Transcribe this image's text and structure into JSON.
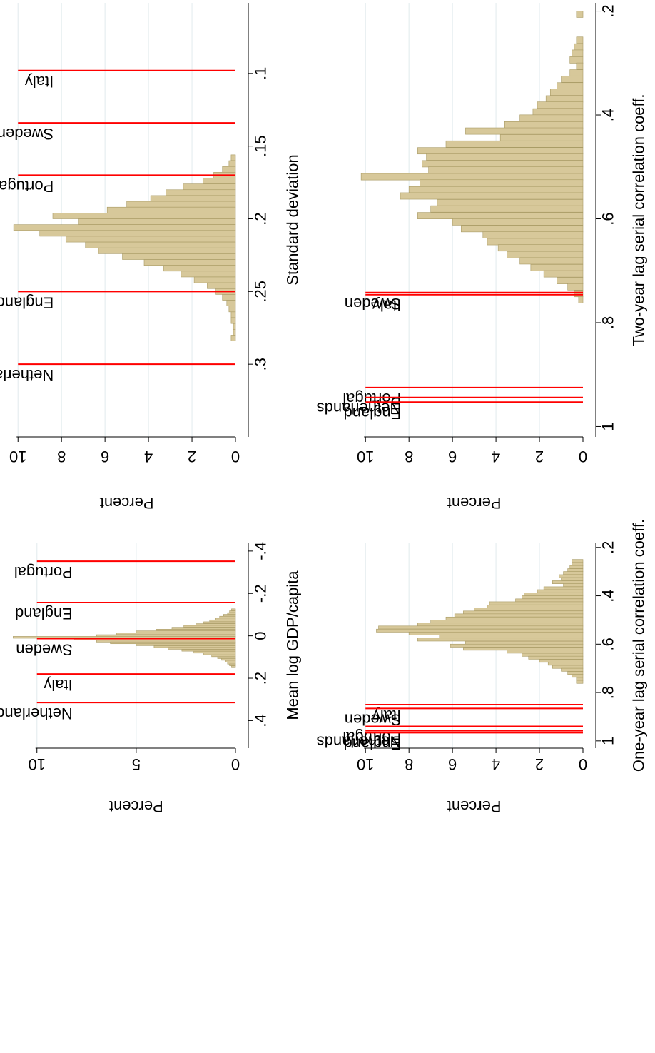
{
  "colors": {
    "bar_fill": "#d7c89a",
    "bar_stroke": "#a89a64",
    "marker": "#ff0000",
    "grid": "#e6eef0",
    "axis": "#000000"
  },
  "chart_data": [
    {
      "type": "histogram",
      "panel": "top-left",
      "xlabel": "Standard deviation",
      "ylabel": "Percent",
      "xlim": [
        0.05,
        0.35
      ],
      "ylim": [
        0,
        10.5
      ],
      "xticks": [
        0.1,
        0.15,
        0.2,
        0.25,
        0.3
      ],
      "xtick_labels": [
        ".1",
        ".15",
        ".2",
        ".25",
        ".3"
      ],
      "yticks": [
        0,
        2,
        4,
        6,
        8,
        10
      ],
      "ytick_labels": [
        "0",
        "2",
        "4",
        "6",
        "8",
        "10"
      ],
      "grid": true,
      "bin_width": 0.004,
      "bins": [
        {
          "x": 0.158,
          "y": 0.2
        },
        {
          "x": 0.162,
          "y": 0.3
        },
        {
          "x": 0.166,
          "y": 0.6
        },
        {
          "x": 0.17,
          "y": 1.0
        },
        {
          "x": 0.174,
          "y": 1.5
        },
        {
          "x": 0.178,
          "y": 2.4
        },
        {
          "x": 0.182,
          "y": 3.2
        },
        {
          "x": 0.186,
          "y": 3.9
        },
        {
          "x": 0.19,
          "y": 5.0
        },
        {
          "x": 0.194,
          "y": 5.9
        },
        {
          "x": 0.198,
          "y": 8.4
        },
        {
          "x": 0.202,
          "y": 7.2
        },
        {
          "x": 0.206,
          "y": 10.2
        },
        {
          "x": 0.21,
          "y": 9.0
        },
        {
          "x": 0.214,
          "y": 7.8
        },
        {
          "x": 0.218,
          "y": 6.9
        },
        {
          "x": 0.222,
          "y": 6.3
        },
        {
          "x": 0.226,
          "y": 5.2
        },
        {
          "x": 0.23,
          "y": 4.2
        },
        {
          "x": 0.234,
          "y": 3.3
        },
        {
          "x": 0.238,
          "y": 2.5
        },
        {
          "x": 0.242,
          "y": 1.9
        },
        {
          "x": 0.246,
          "y": 1.3
        },
        {
          "x": 0.25,
          "y": 0.9
        },
        {
          "x": 0.254,
          "y": 0.6
        },
        {
          "x": 0.258,
          "y": 0.4
        },
        {
          "x": 0.262,
          "y": 0.3
        },
        {
          "x": 0.266,
          "y": 0.2
        },
        {
          "x": 0.27,
          "y": 0.2
        },
        {
          "x": 0.274,
          "y": 0.1
        },
        {
          "x": 0.278,
          "y": 0.1
        },
        {
          "x": 0.282,
          "y": 0.2
        }
      ],
      "markers": [
        {
          "label": "Italy",
          "x": 0.098
        },
        {
          "label": "Sweden",
          "x": 0.134
        },
        {
          "label": "Portugal",
          "x": 0.17
        },
        {
          "label": "England",
          "x": 0.25
        },
        {
          "label": "Netherlands",
          "x": 0.3
        }
      ]
    },
    {
      "type": "histogram",
      "panel": "top-right",
      "xlabel": "Two-year lag serial correlation coeff.",
      "ylabel": "Percent",
      "xlim": [
        0.18,
        1.02
      ],
      "ylim": [
        0,
        10.5
      ],
      "xticks": [
        0.2,
        0.4,
        0.6,
        0.8,
        1.0
      ],
      "xtick_labels": [
        ".2",
        ".4",
        ".6",
        ".8",
        "1"
      ],
      "yticks": [
        0,
        2,
        4,
        6,
        8,
        10
      ],
      "ytick_labels": [
        "0",
        "2",
        "4",
        "6",
        "8",
        "10"
      ],
      "grid": true,
      "bin_width": 0.0125,
      "bins": [
        {
          "x": 0.206,
          "y": 0.3
        },
        {
          "x": 0.219,
          "y": 0.0
        },
        {
          "x": 0.231,
          "y": 0.0
        },
        {
          "x": 0.244,
          "y": 0.0
        },
        {
          "x": 0.256,
          "y": 0.3
        },
        {
          "x": 0.269,
          "y": 0.4
        },
        {
          "x": 0.281,
          "y": 0.5
        },
        {
          "x": 0.294,
          "y": 0.6
        },
        {
          "x": 0.306,
          "y": 0.3
        },
        {
          "x": 0.319,
          "y": 0.6
        },
        {
          "x": 0.331,
          "y": 1.0
        },
        {
          "x": 0.344,
          "y": 1.2
        },
        {
          "x": 0.356,
          "y": 1.5
        },
        {
          "x": 0.369,
          "y": 1.7
        },
        {
          "x": 0.381,
          "y": 2.1
        },
        {
          "x": 0.394,
          "y": 2.3
        },
        {
          "x": 0.406,
          "y": 2.9
        },
        {
          "x": 0.419,
          "y": 3.6
        },
        {
          "x": 0.431,
          "y": 5.4
        },
        {
          "x": 0.444,
          "y": 3.8
        },
        {
          "x": 0.456,
          "y": 6.3
        },
        {
          "x": 0.469,
          "y": 7.6
        },
        {
          "x": 0.481,
          "y": 7.2
        },
        {
          "x": 0.494,
          "y": 7.4
        },
        {
          "x": 0.506,
          "y": 7.1
        },
        {
          "x": 0.519,
          "y": 10.2
        },
        {
          "x": 0.531,
          "y": 7.5
        },
        {
          "x": 0.544,
          "y": 8.0
        },
        {
          "x": 0.556,
          "y": 8.4
        },
        {
          "x": 0.569,
          "y": 6.7
        },
        {
          "x": 0.581,
          "y": 7.0
        },
        {
          "x": 0.594,
          "y": 7.6
        },
        {
          "x": 0.606,
          "y": 6.0
        },
        {
          "x": 0.619,
          "y": 5.6
        },
        {
          "x": 0.631,
          "y": 4.6
        },
        {
          "x": 0.644,
          "y": 4.4
        },
        {
          "x": 0.656,
          "y": 3.9
        },
        {
          "x": 0.669,
          "y": 3.5
        },
        {
          "x": 0.681,
          "y": 2.9
        },
        {
          "x": 0.694,
          "y": 2.4
        },
        {
          "x": 0.706,
          "y": 1.8
        },
        {
          "x": 0.719,
          "y": 1.2
        },
        {
          "x": 0.731,
          "y": 0.7
        },
        {
          "x": 0.744,
          "y": 0.4
        },
        {
          "x": 0.756,
          "y": 0.2
        }
      ],
      "markers": [
        {
          "label": "Sweden",
          "x": 0.742
        },
        {
          "label": "Italy",
          "x": 0.746
        },
        {
          "label": "Portugal",
          "x": 0.925
        },
        {
          "label": "Netherlands",
          "x": 0.944
        },
        {
          "label": "England",
          "x": 0.953
        }
      ]
    },
    {
      "type": "histogram",
      "panel": "bottom-left",
      "xlabel": "Mean log GDP/capita",
      "ylabel": "Percent",
      "xlim": [
        -0.44,
        0.53
      ],
      "ylim": [
        0,
        11.5
      ],
      "xticks": [
        -0.4,
        -0.2,
        0,
        0.2,
        0.4
      ],
      "xtick_labels": [
        "-.4",
        "-.2",
        "0",
        ".2",
        ".4"
      ],
      "yticks": [
        0,
        5,
        10
      ],
      "ytick_labels": [
        "0",
        "5",
        "10"
      ],
      "grid": true,
      "bin_width": 0.0087,
      "bins": [
        {
          "x": -0.123,
          "y": 0.2
        },
        {
          "x": -0.114,
          "y": 0.3
        },
        {
          "x": -0.105,
          "y": 0.4
        },
        {
          "x": -0.097,
          "y": 0.6
        },
        {
          "x": -0.088,
          "y": 0.8
        },
        {
          "x": -0.079,
          "y": 1.0
        },
        {
          "x": -0.071,
          "y": 1.3
        },
        {
          "x": -0.062,
          "y": 1.6
        },
        {
          "x": -0.053,
          "y": 2.0
        },
        {
          "x": -0.045,
          "y": 2.6
        },
        {
          "x": -0.036,
          "y": 3.2
        },
        {
          "x": -0.027,
          "y": 4.0
        },
        {
          "x": -0.019,
          "y": 5.0
        },
        {
          "x": -0.01,
          "y": 6.0
        },
        {
          "x": -0.001,
          "y": 7.0
        },
        {
          "x": 0.007,
          "y": 11.2
        },
        {
          "x": 0.016,
          "y": 8.1
        },
        {
          "x": 0.025,
          "y": 7.0
        },
        {
          "x": 0.033,
          "y": 6.3
        },
        {
          "x": 0.042,
          "y": 5.0
        },
        {
          "x": 0.051,
          "y": 4.1
        },
        {
          "x": 0.059,
          "y": 3.4
        },
        {
          "x": 0.068,
          "y": 2.7
        },
        {
          "x": 0.077,
          "y": 2.1
        },
        {
          "x": 0.085,
          "y": 1.6
        },
        {
          "x": 0.094,
          "y": 1.2
        },
        {
          "x": 0.103,
          "y": 0.9
        },
        {
          "x": 0.111,
          "y": 0.7
        },
        {
          "x": 0.12,
          "y": 0.5
        },
        {
          "x": 0.129,
          "y": 0.4
        },
        {
          "x": 0.137,
          "y": 0.3
        },
        {
          "x": 0.146,
          "y": 0.2
        }
      ],
      "markers": [
        {
          "label": "Portugal",
          "x": -0.352
        },
        {
          "label": "England",
          "x": -0.157
        },
        {
          "label": "Sweden",
          "x": 0.013
        },
        {
          "label": "Italy",
          "x": 0.18
        },
        {
          "label": "Netherlands",
          "x": 0.315
        }
      ]
    },
    {
      "type": "histogram",
      "panel": "bottom-right",
      "xlabel": "One-year lag serial correlation coeff.",
      "ylabel": "Percent",
      "xlim": [
        0.18,
        1.03
      ],
      "ylim": [
        0,
        10.5
      ],
      "xticks": [
        0.2,
        0.4,
        0.6,
        0.8,
        1.0
      ],
      "xtick_labels": [
        ".2",
        ".4",
        ".6",
        ".8",
        "1"
      ],
      "yticks": [
        0,
        2,
        4,
        6,
        8,
        10
      ],
      "ytick_labels": [
        "0",
        "2",
        "4",
        "6",
        "8",
        "10"
      ],
      "grid": true,
      "bin_width": 0.0125,
      "bins": [
        {
          "x": 0.256,
          "y": 0.5
        },
        {
          "x": 0.269,
          "y": 0.5
        },
        {
          "x": 0.281,
          "y": 0.6
        },
        {
          "x": 0.294,
          "y": 0.7
        },
        {
          "x": 0.306,
          "y": 0.9
        },
        {
          "x": 0.319,
          "y": 1.1
        },
        {
          "x": 0.331,
          "y": 1.0
        },
        {
          "x": 0.344,
          "y": 1.4
        },
        {
          "x": 0.356,
          "y": 0.9
        },
        {
          "x": 0.369,
          "y": 1.8
        },
        {
          "x": 0.381,
          "y": 2.1
        },
        {
          "x": 0.394,
          "y": 2.7
        },
        {
          "x": 0.406,
          "y": 2.8
        },
        {
          "x": 0.419,
          "y": 3.1
        },
        {
          "x": 0.431,
          "y": 4.3
        },
        {
          "x": 0.444,
          "y": 4.4
        },
        {
          "x": 0.456,
          "y": 5.0
        },
        {
          "x": 0.469,
          "y": 5.5
        },
        {
          "x": 0.481,
          "y": 5.9
        },
        {
          "x": 0.494,
          "y": 6.3
        },
        {
          "x": 0.506,
          "y": 7.0
        },
        {
          "x": 0.519,
          "y": 7.6
        },
        {
          "x": 0.531,
          "y": 9.4
        },
        {
          "x": 0.544,
          "y": 9.5
        },
        {
          "x": 0.556,
          "y": 8.0
        },
        {
          "x": 0.569,
          "y": 6.6
        },
        {
          "x": 0.581,
          "y": 7.6
        },
        {
          "x": 0.594,
          "y": 5.4
        },
        {
          "x": 0.606,
          "y": 6.1
        },
        {
          "x": 0.619,
          "y": 5.5
        },
        {
          "x": 0.631,
          "y": 3.5
        },
        {
          "x": 0.644,
          "y": 2.8
        },
        {
          "x": 0.656,
          "y": 2.5
        },
        {
          "x": 0.669,
          "y": 2.0
        },
        {
          "x": 0.681,
          "y": 1.6
        },
        {
          "x": 0.694,
          "y": 1.4
        },
        {
          "x": 0.706,
          "y": 1.0
        },
        {
          "x": 0.719,
          "y": 0.7
        },
        {
          "x": 0.731,
          "y": 0.5
        },
        {
          "x": 0.744,
          "y": 0.3
        },
        {
          "x": 0.756,
          "y": 0.3
        }
      ],
      "markers": [
        {
          "label": "Italy",
          "x": 0.85
        },
        {
          "label": "Sweden",
          "x": 0.866
        },
        {
          "label": "Portugal",
          "x": 0.94
        },
        {
          "label": "Netherlands",
          "x": 0.958
        },
        {
          "label": "England",
          "x": 0.966
        }
      ]
    }
  ]
}
